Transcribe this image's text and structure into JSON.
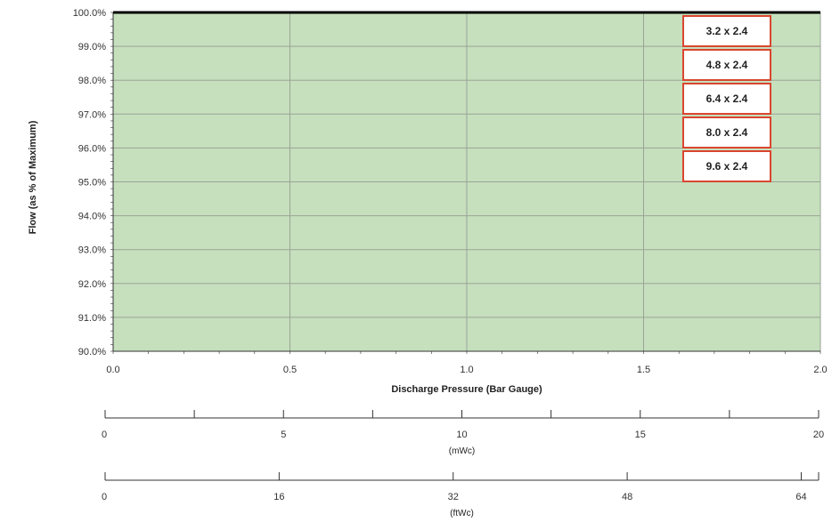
{
  "chart_data": {
    "type": "line",
    "colors": {
      "plot_bg": "#c6dfbd",
      "grid": "#9aa596",
      "top_line": "#000000",
      "legend_border": "#d9462f",
      "legend_bg": "#ffffff",
      "axis": "#333333"
    },
    "xlabel": "Discharge Pressure (Bar Gauge)",
    "ylabel": "Flow (as % of Maximum)",
    "xlim": [
      0,
      2
    ],
    "ylim": [
      90,
      100
    ],
    "x_ticks": [
      0,
      0.5,
      1,
      1.5,
      2
    ],
    "x_tick_labels": [
      "0.0",
      "0.5",
      "1.0",
      "1.5",
      "2.0"
    ],
    "y_ticks": [
      90,
      91,
      92,
      93,
      94,
      95,
      96,
      97,
      98,
      99,
      100
    ],
    "y_tick_labels": [
      "90.0%",
      "91.0%",
      "92.0%",
      "93.0%",
      "94.0%",
      "95.0%",
      "96.0%",
      "97.0%",
      "98.0%",
      "99.0%",
      "100.0%"
    ],
    "grid": true,
    "legend_position": "top-right",
    "series": [
      {
        "name": "3.2 x 2.4",
        "x": [
          0,
          2
        ],
        "y": [
          100,
          100
        ]
      },
      {
        "name": "4.8 x 2.4",
        "x": [
          0,
          2
        ],
        "y": [
          100,
          100
        ]
      },
      {
        "name": "6.4 x 2.4",
        "x": [
          0,
          2
        ],
        "y": [
          100,
          100
        ]
      },
      {
        "name": "8.0 x 2.4",
        "x": [
          0,
          2
        ],
        "y": [
          100,
          100
        ]
      },
      {
        "name": "9.6 x 2.4",
        "x": [
          0,
          2
        ],
        "y": [
          100,
          100
        ]
      }
    ],
    "secondary_axes": [
      {
        "unit_label": "(mWc)",
        "max": 20,
        "labels": [
          {
            "value": 0,
            "text": "0"
          },
          {
            "value": 5,
            "text": "5"
          },
          {
            "value": 10,
            "text": "10"
          },
          {
            "value": 15,
            "text": "15"
          },
          {
            "value": 20,
            "text": "20"
          }
        ],
        "tick_values": [
          0,
          2.5,
          5,
          7.5,
          10,
          12.5,
          15,
          17.5,
          20
        ]
      },
      {
        "unit_label": "(ftWc)",
        "max": 65.6,
        "labels": [
          {
            "value": 0,
            "text": "0"
          },
          {
            "value": 16,
            "text": "16"
          },
          {
            "value": 32,
            "text": "32"
          },
          {
            "value": 48,
            "text": "48"
          },
          {
            "value": 64,
            "text": "64"
          }
        ],
        "tick_values": [
          0,
          16,
          32,
          48,
          64,
          65.6
        ]
      }
    ]
  }
}
